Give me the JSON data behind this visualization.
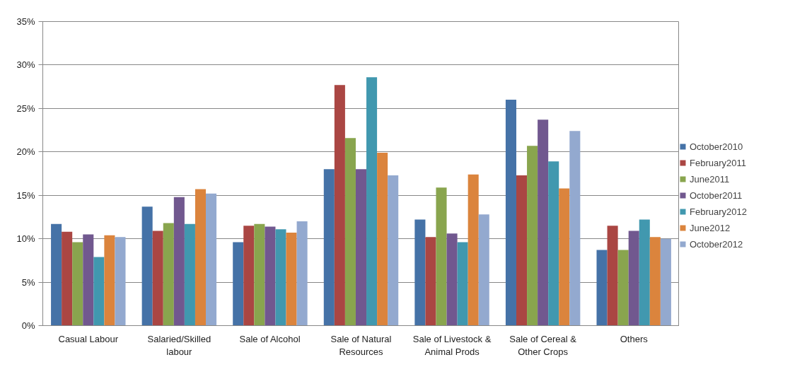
{
  "chart_data": {
    "type": "bar",
    "categories": [
      "Casual Labour",
      "Salaried/Skilled\nlabour",
      "Sale of Alcohol",
      "Sale of Natural\nResources",
      "Sale of Livestock &\nAnimal Prods",
      "Sale of Cereal &\nOther Crops",
      "Others"
    ],
    "series": [
      {
        "name": "October2010",
        "color": "#4572a7",
        "values": [
          11.7,
          13.7,
          9.6,
          18.0,
          12.2,
          26.0,
          8.7
        ]
      },
      {
        "name": "February2011",
        "color": "#aa4643",
        "values": [
          10.8,
          10.9,
          11.5,
          27.7,
          10.2,
          17.3,
          11.5
        ]
      },
      {
        "name": "June2011",
        "color": "#89a54e",
        "values": [
          9.6,
          11.8,
          11.7,
          21.6,
          15.9,
          20.7,
          8.7
        ]
      },
      {
        "name": "October2011",
        "color": "#71588f",
        "values": [
          10.5,
          14.8,
          11.4,
          18.0,
          10.6,
          23.7,
          10.9
        ]
      },
      {
        "name": "February2012",
        "color": "#4198af",
        "values": [
          7.9,
          11.7,
          11.1,
          28.6,
          9.6,
          18.9,
          12.2
        ]
      },
      {
        "name": "June2012",
        "color": "#db843d",
        "values": [
          10.4,
          15.7,
          10.7,
          19.9,
          17.4,
          15.8,
          10.2
        ]
      },
      {
        "name": "October2012",
        "color": "#93a9cf",
        "values": [
          10.2,
          15.2,
          12.0,
          17.3,
          12.8,
          22.4,
          10.0
        ]
      }
    ],
    "ylim": [
      0,
      35
    ],
    "yticks": [
      {
        "value": 0,
        "label": "0%"
      },
      {
        "value": 5,
        "label": "5%"
      },
      {
        "value": 10,
        "label": "10%"
      },
      {
        "value": 15,
        "label": "15%"
      },
      {
        "value": 20,
        "label": "20%"
      },
      {
        "value": 25,
        "label": "25%"
      },
      {
        "value": 30,
        "label": "30%"
      },
      {
        "value": 35,
        "label": "35%"
      }
    ],
    "grid": "y",
    "legend": "right"
  }
}
